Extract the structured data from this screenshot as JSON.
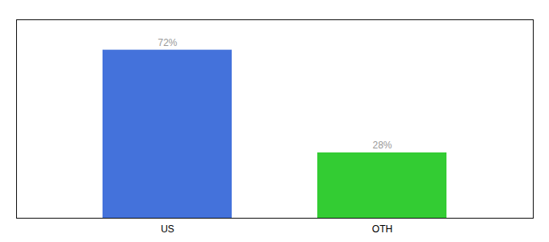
{
  "chart_data": {
    "type": "bar",
    "categories": [
      "US",
      "OTH"
    ],
    "values": [
      72,
      28
    ],
    "value_labels": [
      "72%",
      "28%"
    ],
    "colors": [
      "#4472db",
      "#33cc33"
    ],
    "ylim": [
      0,
      85
    ],
    "data_labels": true,
    "tick_labels": "x",
    "grid": false
  }
}
